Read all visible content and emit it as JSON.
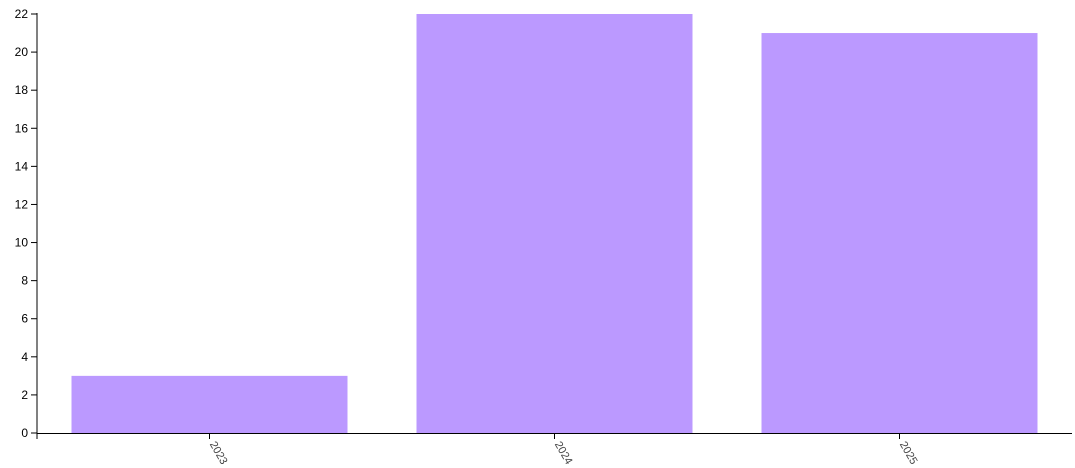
{
  "chart_data": {
    "type": "bar",
    "categories": [
      "2023",
      "2024",
      "2025"
    ],
    "values": [
      3,
      22,
      21
    ],
    "ylim": [
      0,
      22
    ],
    "yticks": [
      0,
      2,
      4,
      6,
      8,
      10,
      12,
      14,
      16,
      18,
      20,
      22
    ],
    "bar_color": "#bb99ff",
    "grid": false
  }
}
